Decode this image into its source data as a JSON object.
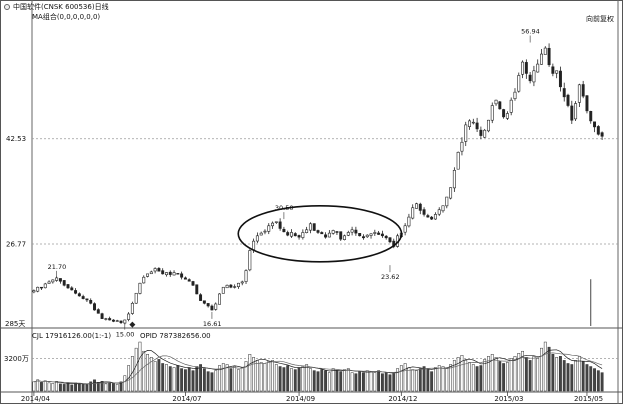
{
  "header": {
    "title": "中国软件(CNSK 600536)日线",
    "ma_label": "MA组合(0,0,0,0,0,0)",
    "adjust_label": "向前复权"
  },
  "volume_header": {
    "cjl": "CJL  17916126.00(1:-1)",
    "opid": "OPID  787382656.00"
  },
  "colors": {
    "candle": "#222222",
    "grid": "#9a9a9a",
    "ellipse": "#111111",
    "background": "#ffffff"
  },
  "chart_data": {
    "type": "candlestick",
    "price_axis": {
      "ticks": [
        26.77,
        42.53
      ],
      "tick_labels": [
        "26.77",
        "42.53"
      ],
      "range": [
        14.5,
        60
      ]
    },
    "volume_axis": {
      "tick": 3200,
      "tick_label": "3200万"
    },
    "x_axis": {
      "labels": [
        "2014/04",
        "2014/07",
        "2014/09",
        "2014/12",
        "2015/03",
        "2015/05"
      ],
      "label_positions": [
        0,
        40,
        70,
        97,
        125,
        146
      ]
    },
    "days_label": "285天",
    "annotations": [
      {
        "text": "21.70",
        "x": 6,
        "y": 21.7
      },
      {
        "text": "15.00",
        "x": 24,
        "y": 15.0
      },
      {
        "text": "16.61",
        "x": 47,
        "y": 16.61
      },
      {
        "text": "30.50",
        "x": 66,
        "y": 30.5
      },
      {
        "text": "23.62",
        "x": 94,
        "y": 23.62
      },
      {
        "text": "56.94",
        "x": 131,
        "y": 56.94
      }
    ],
    "closes": [
      19.8,
      20.3,
      20.2,
      20.8,
      21.1,
      21.4,
      21.7,
      21.2,
      20.6,
      20.2,
      19.9,
      19.4,
      19.0,
      18.6,
      18.4,
      17.9,
      16.9,
      16.4,
      15.6,
      15.6,
      15.4,
      15.2,
      15.3,
      15.0,
      15.4,
      16.3,
      17.9,
      19.4,
      20.9,
      21.8,
      22.3,
      22.6,
      23.1,
      22.7,
      22.3,
      22.5,
      22.2,
      22.5,
      22.3,
      21.8,
      21.5,
      21.2,
      20.6,
      19.3,
      18.3,
      17.9,
      17.5,
      16.9,
      17.8,
      19.3,
      20.3,
      20.6,
      20.3,
      20.4,
      20.9,
      21.1,
      22.8,
      25.8,
      27.2,
      28.0,
      28.4,
      28.7,
      29.5,
      29.9,
      30.1,
      29.1,
      28.6,
      28.1,
      28.5,
      28.0,
      27.8,
      28.5,
      28.9,
      29.8,
      28.8,
      28.5,
      28.3,
      27.8,
      28.4,
      28.8,
      28.5,
      27.5,
      28.0,
      28.5,
      28.9,
      28.4,
      28.0,
      27.7,
      28.1,
      28.3,
      28.5,
      28.2,
      28.0,
      27.7,
      27.1,
      26.4,
      28.0,
      28.4,
      29.5,
      30.8,
      32.2,
      32.8,
      31.8,
      31.2,
      30.8,
      30.5,
      31.2,
      31.9,
      32.5,
      33.8,
      35.2,
      37.8,
      40.5,
      42.0,
      44.6,
      45.2,
      45.0,
      44.0,
      43.0,
      43.8,
      45.3,
      47.5,
      48.3,
      47.0,
      45.8,
      46.3,
      48.3,
      49.5,
      52.0,
      54.0,
      52.3,
      51.2,
      52.7,
      53.7,
      55.2,
      56.1,
      53.6,
      52.3,
      52.7,
      50.3,
      48.8,
      47.5,
      45.3,
      47.8,
      50.6,
      48.9,
      46.7,
      45.2,
      44.3,
      43.2,
      42.9
    ],
    "volumes": [
      900,
      1100,
      850,
      1000,
      800,
      750,
      950,
      700,
      650,
      780,
      600,
      800,
      700,
      650,
      600,
      900,
      1100,
      850,
      950,
      700,
      800,
      750,
      650,
      900,
      1500,
      2500,
      3400,
      4200,
      4800,
      3900,
      3600,
      3300,
      2900,
      3100,
      2700,
      2600,
      2400,
      2300,
      2500,
      2200,
      2100,
      2300,
      2000,
      2400,
      2600,
      2200,
      1900,
      1800,
      2000,
      2500,
      2700,
      2600,
      2200,
      2400,
      2100,
      2300,
      2900,
      3600,
      3300,
      3000,
      2800,
      2700,
      2900,
      3000,
      2600,
      2400,
      2300,
      2500,
      2200,
      2100,
      2300,
      2400,
      2600,
      2200,
      2000,
      1900,
      2100,
      2000,
      1800,
      2200,
      2000,
      1900,
      2100,
      2200,
      1800,
      1700,
      1900,
      1800,
      2000,
      1900,
      1800,
      2000,
      1700,
      1800,
      1600,
      1700,
      2200,
      2500,
      2700,
      2300,
      2100,
      2000,
      2200,
      2400,
      2100,
      1900,
      2300,
      2500,
      2400,
      2200,
      2600,
      3000,
      3300,
      3500,
      3000,
      2800,
      2600,
      2400,
      2500,
      3100,
      3400,
      3600,
      3300,
      2900,
      2700,
      2800,
      3200,
      3400,
      3700,
      3900,
      3300,
      3000,
      3400,
      3200,
      4200,
      4800,
      4300,
      3600,
      3300,
      3400,
      3000,
      2700,
      2600,
      3000,
      3400,
      2900,
      2600,
      2400,
      2200,
      2000,
      1800
    ]
  }
}
